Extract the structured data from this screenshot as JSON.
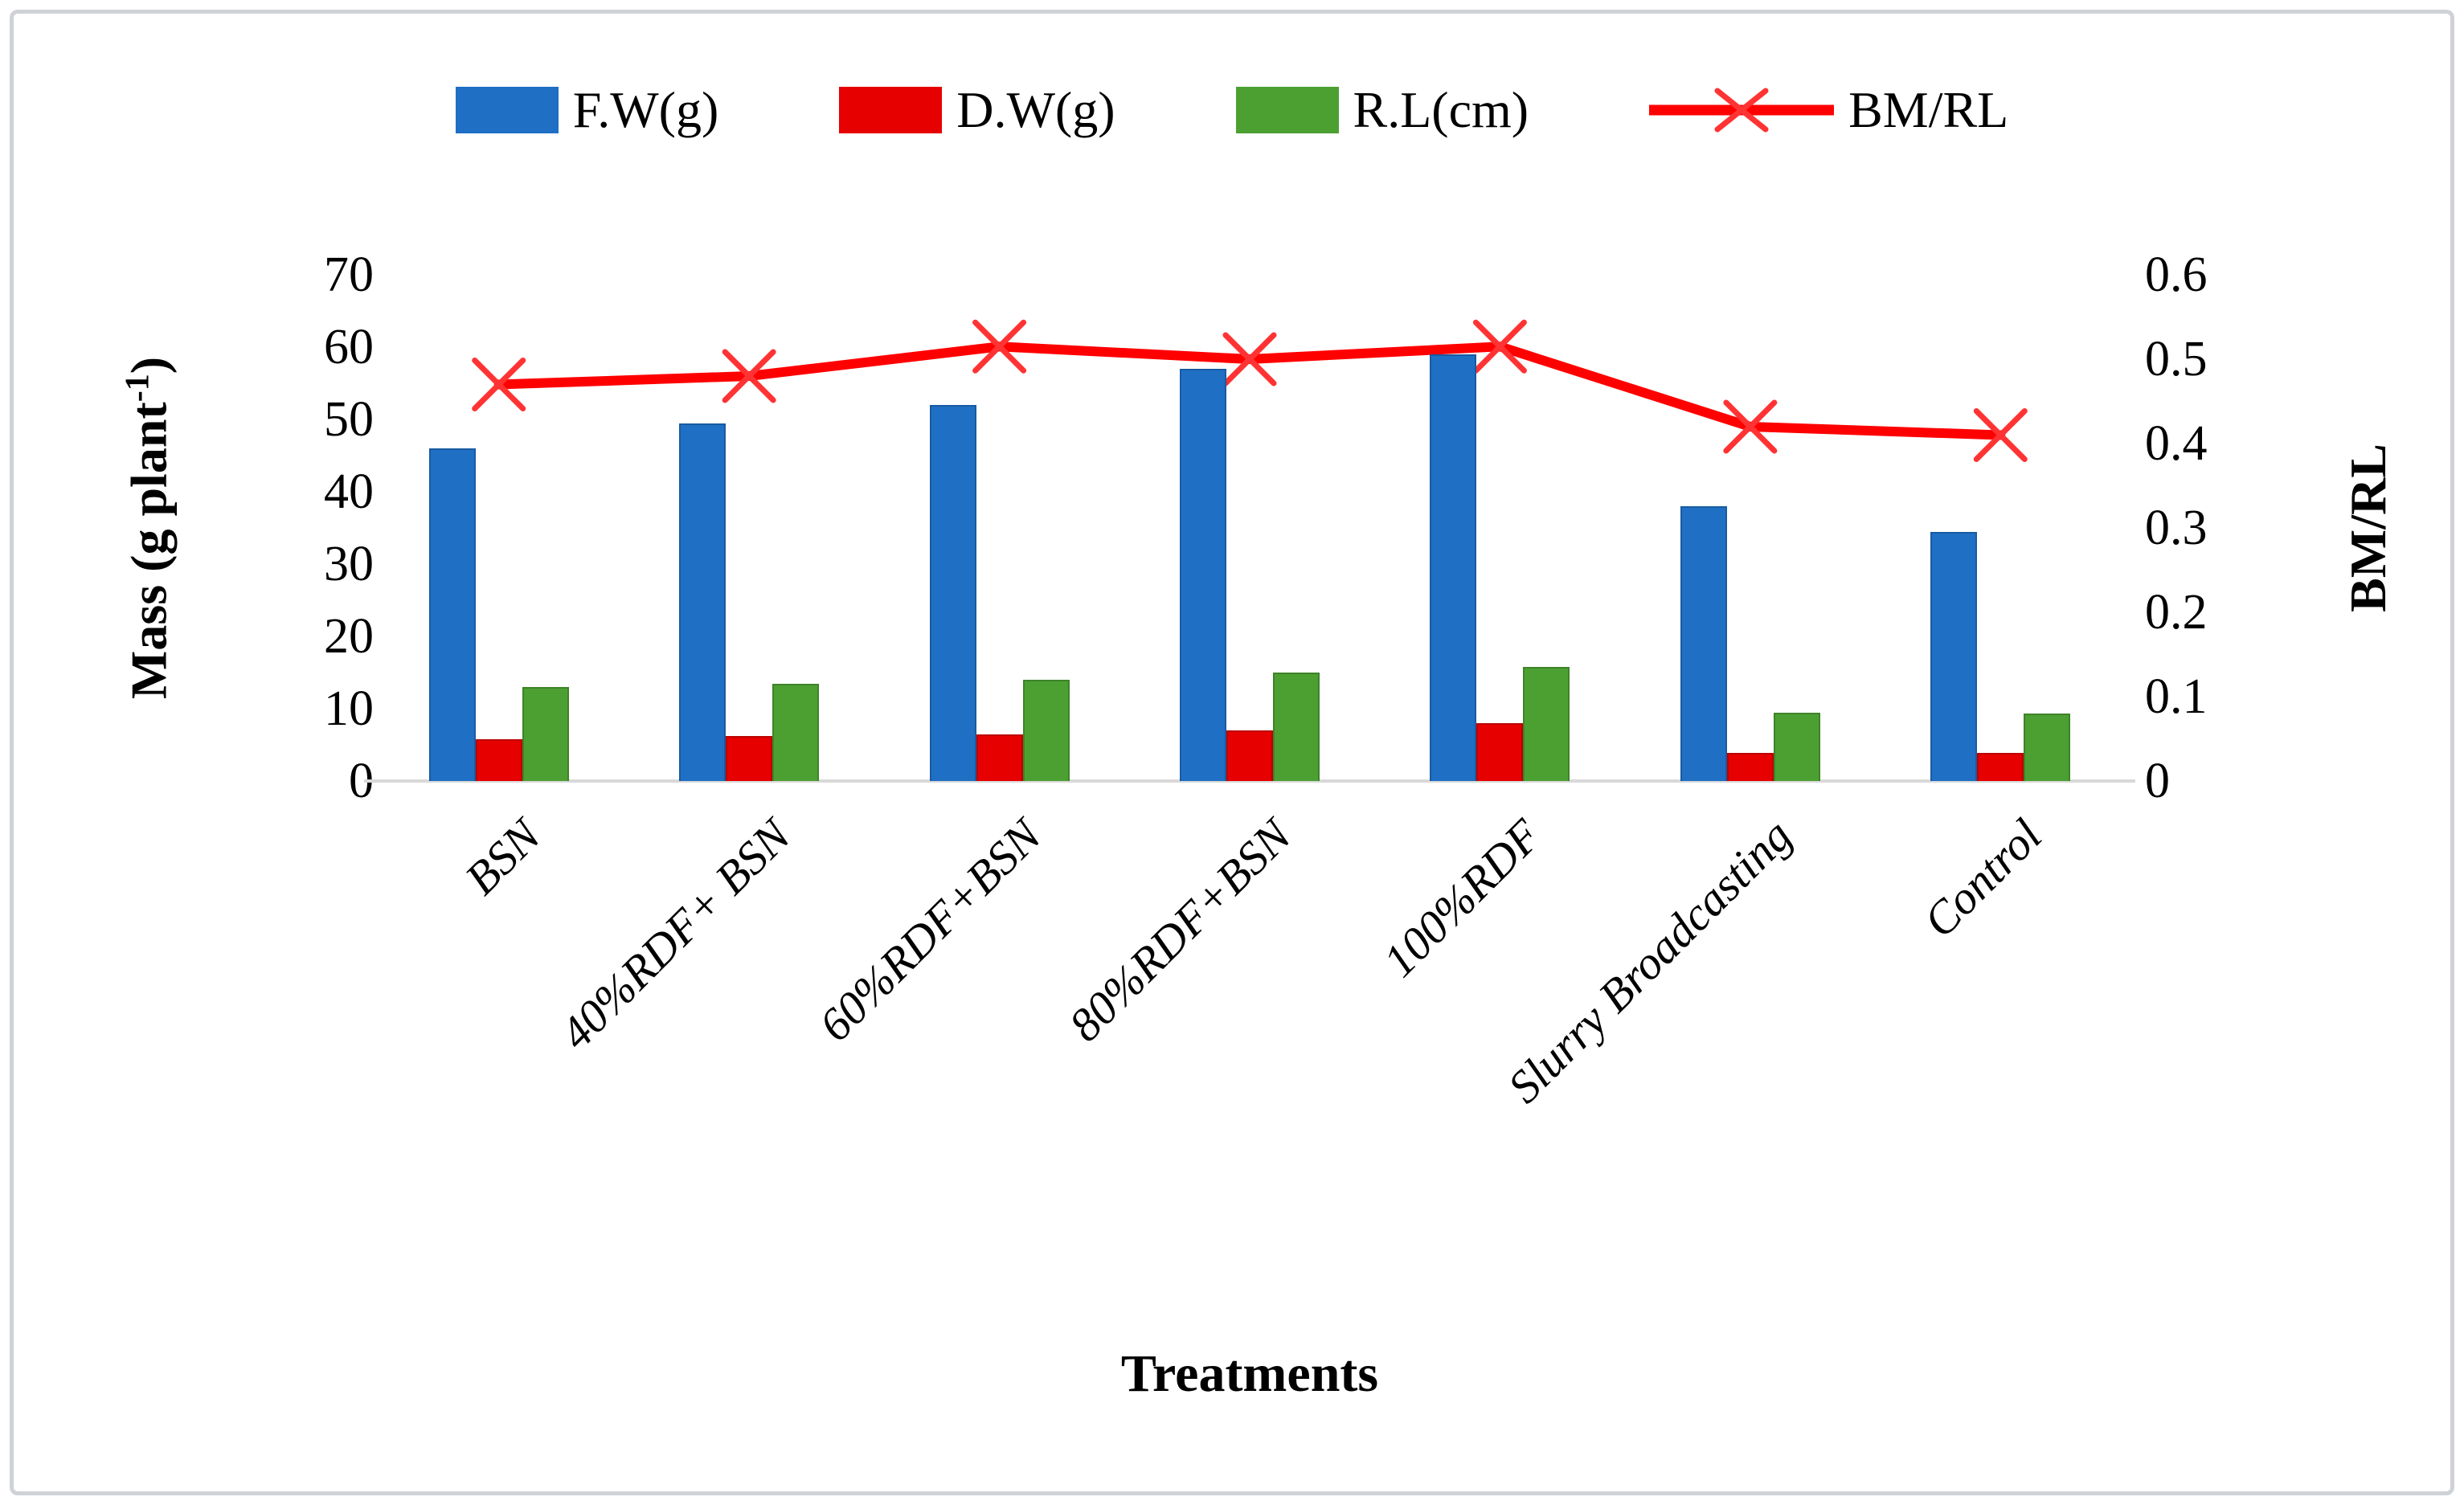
{
  "figure": {
    "x_axis_title": "Treatments",
    "left_axis_title": {
      "prefix": "Mass (g plant",
      "superscript": "-1",
      "suffix": ")"
    },
    "right_axis_title": "BM/RL"
  },
  "chart_data": {
    "type": "bar+line combo",
    "categories": [
      "BSN",
      "40%RDF+ BSN",
      "60%RDF+BSN",
      "80%RDF+BSN",
      "100%RDF",
      "Slurry Broadcasting",
      "Control"
    ],
    "series": [
      {
        "name": "F.W(g)",
        "type": "bar",
        "axis": "left",
        "color": "#1F6FC5",
        "values": [
          46,
          49.5,
          52,
          57,
          59,
          38,
          34.5
        ]
      },
      {
        "name": "D.W(g)",
        "type": "bar",
        "axis": "left",
        "color": "#E60000",
        "values": [
          5.8,
          6.2,
          6.5,
          7,
          8,
          3.9,
          3.9
        ]
      },
      {
        "name": "R.L(cm)",
        "type": "bar",
        "axis": "left",
        "color": "#4CA032",
        "values": [
          13,
          13.5,
          14,
          15,
          15.8,
          9.5,
          9.3
        ]
      },
      {
        "name": "BM/RL",
        "type": "line",
        "axis": "right",
        "color": "#FF0000",
        "marker": "x",
        "marker_color": "#FF3333",
        "values": [
          0.47,
          0.48,
          0.515,
          0.5,
          0.515,
          0.42,
          0.41
        ]
      }
    ],
    "left_axis": {
      "min": 0,
      "max": 70,
      "ticks": [
        "0",
        "10",
        "20",
        "30",
        "40",
        "50",
        "60",
        "70"
      ]
    },
    "right_axis": {
      "min": 0,
      "max": 0.6,
      "ticks": [
        "0",
        "0.1",
        "0.2",
        "0.3",
        "0.4",
        "0.5",
        "0.6"
      ]
    },
    "legend_position": "top",
    "grid": false,
    "axis_line_color": "#D9D9D9"
  }
}
